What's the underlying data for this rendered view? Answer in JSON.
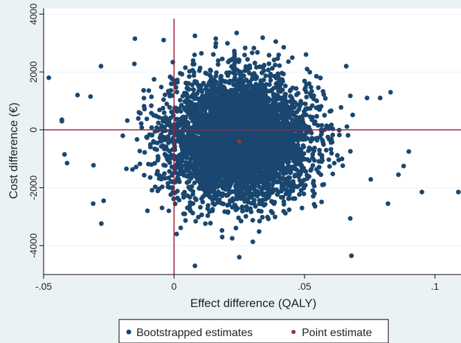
{
  "chart_data": {
    "type": "scatter",
    "title": "",
    "xlabel": "Effect difference (QALY)",
    "ylabel": "Cost difference (€)",
    "xlim": [
      -0.05,
      0.11
    ],
    "ylim": [
      -5000,
      4200
    ],
    "x_ticks": [
      {
        "value": -0.05,
        "label": "-.05"
      },
      {
        "value": 0,
        "label": "0"
      },
      {
        "value": 0.05,
        "label": ".05"
      },
      {
        "value": 0.1,
        "label": ".1"
      }
    ],
    "y_ticks": [
      {
        "value": -4000,
        "label": "-4000"
      },
      {
        "value": -2000,
        "label": "-2000"
      },
      {
        "value": 0,
        "label": "0"
      },
      {
        "value": 2000,
        "label": "2000"
      },
      {
        "value": 4000,
        "label": "4000"
      }
    ],
    "reference_lines": {
      "x": 0,
      "y": 0,
      "color": "#a0203a"
    },
    "grid": "horizontal",
    "legend_position": "bottom",
    "series": [
      {
        "name": "Bootstrapped estimates",
        "color": "#1a476f",
        "distribution": {
          "center_x": 0.025,
          "center_y": -300,
          "sd_x": 0.0135,
          "sd_y": 1050,
          "n": 5000
        },
        "outliers": [
          {
            "x": -0.048,
            "y": 1800
          },
          {
            "x": -0.043,
            "y": 350
          },
          {
            "x": -0.043,
            "y": 300
          },
          {
            "x": -0.042,
            "y": -850
          },
          {
            "x": -0.041,
            "y": -1150
          },
          {
            "x": -0.037,
            "y": 1200
          },
          {
            "x": -0.032,
            "y": 1150
          },
          {
            "x": -0.031,
            "y": -2550
          },
          {
            "x": -0.027,
            "y": -2450
          },
          {
            "x": -0.028,
            "y": 2200
          },
          {
            "x": -0.015,
            "y": 3150
          },
          {
            "x": -0.004,
            "y": 3100
          },
          {
            "x": -0.002,
            "y": -2800
          },
          {
            "x": 0.001,
            "y": -3600
          },
          {
            "x": 0.008,
            "y": 3250
          },
          {
            "x": 0.008,
            "y": -4700
          },
          {
            "x": 0.016,
            "y": 3150
          },
          {
            "x": 0.024,
            "y": 3350
          },
          {
            "x": 0.025,
            "y": -4400
          },
          {
            "x": 0.039,
            "y": 3050
          },
          {
            "x": 0.066,
            "y": 2200
          },
          {
            "x": 0.068,
            "y": -4350
          },
          {
            "x": 0.074,
            "y": 1100
          },
          {
            "x": 0.079,
            "y": 1100
          },
          {
            "x": 0.083,
            "y": 1300
          },
          {
            "x": 0.082,
            "y": -2550
          },
          {
            "x": 0.086,
            "y": -1550
          },
          {
            "x": 0.088,
            "y": -1250
          },
          {
            "x": 0.09,
            "y": -750
          },
          {
            "x": 0.095,
            "y": -2150
          },
          {
            "x": 0.109,
            "y": -2150
          }
        ]
      },
      {
        "name": "Point estimate",
        "color": "#90353b",
        "points": [
          {
            "x": 0.025,
            "y": -400
          }
        ]
      }
    ]
  }
}
